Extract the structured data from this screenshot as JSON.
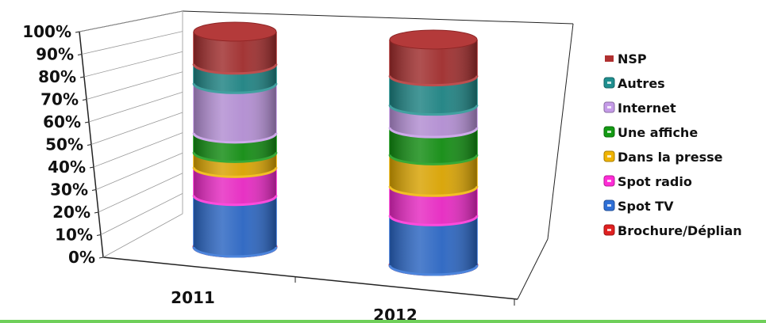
{
  "chart_data": {
    "type": "bar",
    "stacked": true,
    "percent_stacked": true,
    "categories": [
      "2011",
      "2012"
    ],
    "y_ticks": [
      "0%",
      "10%",
      "20%",
      "30%",
      "40%",
      "50%",
      "60%",
      "70%",
      "80%",
      "90%",
      "100%"
    ],
    "ylim": [
      0,
      100
    ],
    "legend_position": "right",
    "series": [
      {
        "name": "Brochure/Déplian",
        "color": "#e02020",
        "values": [
          0,
          0
        ]
      },
      {
        "name": "Spot TV",
        "color": "#2e6fd6",
        "values": [
          24,
          22
        ]
      },
      {
        "name": "Spot radio",
        "color": "#ff2bd6",
        "values": [
          13,
          13
        ]
      },
      {
        "name": "Dans la presse",
        "color": "#f0b400",
        "values": [
          7,
          14
        ]
      },
      {
        "name": "Une affiche",
        "color": "#139a13",
        "values": [
          9,
          12
        ]
      },
      {
        "name": "Internet",
        "color": "#c59be8",
        "values": [
          23,
          10
        ]
      },
      {
        "name": "Autres",
        "color": "#1f8f8f",
        "values": [
          9,
          13
        ]
      },
      {
        "name": "NSP",
        "color": "#b03030",
        "values": [
          15,
          16
        ]
      }
    ]
  }
}
